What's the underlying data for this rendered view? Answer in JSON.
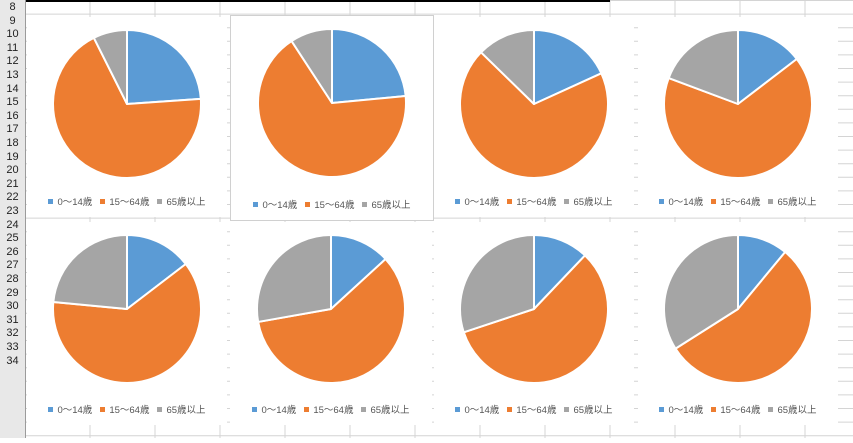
{
  "sheet": {
    "row_numbers": [
      "8",
      "9",
      "10",
      "11",
      "12",
      "13",
      "14",
      "15",
      "16",
      "17",
      "18",
      "19",
      "20",
      "21",
      "22",
      "23",
      "24",
      "25",
      "26",
      "27",
      "28",
      "29",
      "30",
      "31",
      "32",
      "33",
      "34"
    ]
  },
  "colors": [
    "#5b9bd5",
    "#ed7d31",
    "#a5a5a5"
  ],
  "chart_data": [
    {
      "type": "pie",
      "categories": [
        "0～14歳",
        "15～64歳",
        "65歳以上"
      ],
      "values": [
        23.9,
        68.7,
        7.4
      ],
      "legend": "bottom"
    },
    {
      "type": "pie",
      "categories": [
        "0～14歳",
        "15～64歳",
        "65歳以上"
      ],
      "values": [
        23.5,
        67.3,
        9.2
      ],
      "legend": "bottom"
    },
    {
      "type": "pie",
      "categories": [
        "0～14歳",
        "15～64歳",
        "65歳以上"
      ],
      "values": [
        18.2,
        69.1,
        12.7
      ],
      "legend": "bottom"
    },
    {
      "type": "pie",
      "categories": [
        "0～14歳",
        "15～64歳",
        "65歳以上"
      ],
      "values": [
        14.6,
        66.1,
        19.3
      ],
      "legend": "bottom"
    },
    {
      "type": "pie",
      "categories": [
        "0～14歳",
        "15～64歳",
        "65歳以上"
      ],
      "values": [
        14.6,
        61.9,
        23.5
      ],
      "legend": "bottom"
    },
    {
      "type": "pie",
      "categories": [
        "0～14歳",
        "15～64歳",
        "65歳以上"
      ],
      "values": [
        13.2,
        59.0,
        27.8
      ],
      "legend": "bottom"
    },
    {
      "type": "pie",
      "categories": [
        "0～14歳",
        "15～64歳",
        "65歳以上"
      ],
      "values": [
        12.1,
        57.8,
        30.1
      ],
      "legend": "bottom"
    },
    {
      "type": "pie",
      "categories": [
        "0～14歳",
        "15～64歳",
        "65歳以上"
      ],
      "values": [
        11.0,
        55.0,
        34.0
      ],
      "legend": "bottom"
    }
  ]
}
